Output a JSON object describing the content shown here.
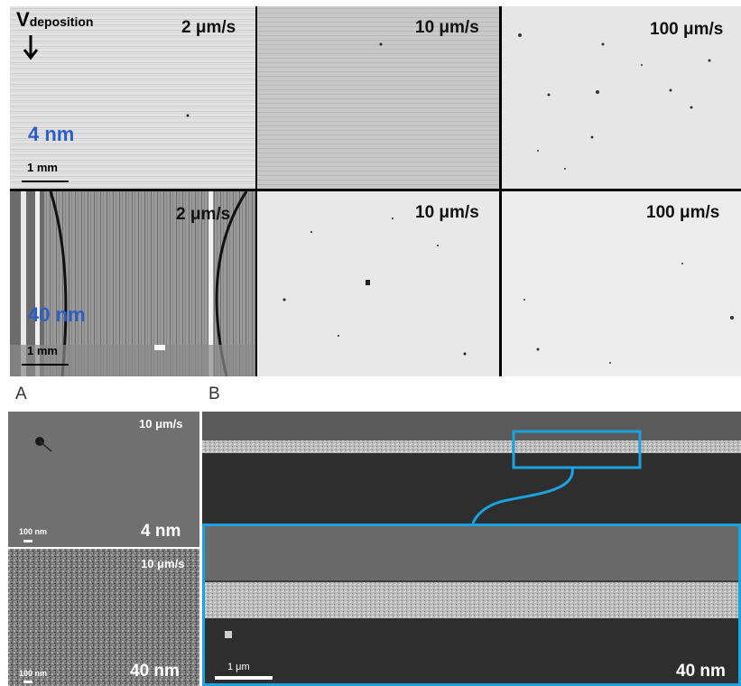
{
  "top_grid": {
    "direction_label": "V",
    "direction_subscript": "deposition",
    "rows": [
      {
        "thickness": "4 nm",
        "scale_label": "1 mm",
        "panels": [
          {
            "speed": "2 μm/s"
          },
          {
            "speed": "10 μm/s"
          },
          {
            "speed": "100 μm/s"
          }
        ]
      },
      {
        "thickness": "40 nm",
        "scale_label": "1 mm",
        "panels": [
          {
            "speed": "2  μm/s"
          },
          {
            "speed": "10 μm/s"
          },
          {
            "speed": "100 μm/s"
          }
        ]
      }
    ]
  },
  "panel_a": {
    "letter": "A",
    "top": {
      "speed": "10  μm/s",
      "thickness": "4 nm",
      "scale_label": "100 nm"
    },
    "bottom": {
      "speed": "10 μm/s",
      "thickness": "40 nm",
      "scale_label": "100 nm"
    }
  },
  "panel_b": {
    "letter": "B",
    "scale_label": "1 μm",
    "thickness": "40 nm"
  },
  "colors": {
    "thickness_label": "#2a5fc8",
    "zoom_box": "#1aa3e0"
  }
}
